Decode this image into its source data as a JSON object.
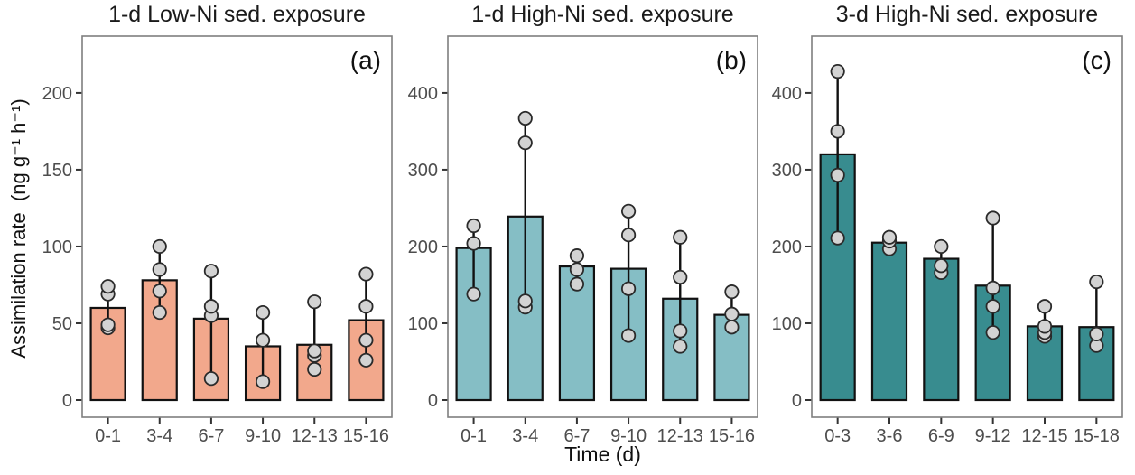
{
  "axes": {
    "ylabel": "Assimilation rate  (ng g⁻¹ h⁻¹)",
    "xlabel": "Time (d)"
  },
  "colors": {
    "background": "#ffffff",
    "panel_border": "#7f7f7f",
    "bar_stroke": "#111111",
    "point_fill": "#d3d3d3",
    "point_stroke": "#2a2a2a",
    "tick_mark": "#333333",
    "tick_label": "#4d4d4d",
    "text": "#1a1a1a",
    "bar_salmon": "#F2A88C",
    "bar_light_teal": "#85BEC5",
    "bar_dark_teal": "#388C8F"
  },
  "chart_data": [
    {
      "type": "bar",
      "title": "1-d Low-Ni sed. exposure",
      "panel_label": "(a)",
      "bar_color": "#F2A88C",
      "categories": [
        "0-1",
        "3-4",
        "6-7",
        "9-10",
        "12-13",
        "15-16"
      ],
      "bar_values": [
        60,
        78,
        53,
        35,
        36,
        52
      ],
      "points": [
        [
          47,
          49,
          69,
          74
        ],
        [
          57,
          71,
          85,
          100
        ],
        [
          14,
          55,
          61,
          84
        ],
        [
          12,
          39,
          57
        ],
        [
          20,
          29,
          32,
          64
        ],
        [
          26,
          39,
          61,
          82
        ]
      ],
      "error_low": [
        47,
        57,
        14,
        12,
        20,
        26
      ],
      "error_high": [
        74,
        100,
        84,
        57,
        64,
        82
      ],
      "yticks": [
        0,
        50,
        100,
        150,
        200
      ],
      "ylim": [
        0,
        237
      ],
      "grid": false,
      "legend": false
    },
    {
      "type": "bar",
      "title": "1-d High-Ni sed. exposure",
      "panel_label": "(b)",
      "bar_color": "#85BEC5",
      "categories": [
        "0-1",
        "3-4",
        "6-7",
        "9-10",
        "12-13",
        "15-16"
      ],
      "bar_values": [
        198,
        239,
        174,
        171,
        132,
        111
      ],
      "points": [
        [
          138,
          204,
          227
        ],
        [
          121,
          129,
          335,
          367
        ],
        [
          151,
          170,
          188
        ],
        [
          84,
          145,
          215,
          246
        ],
        [
          70,
          90,
          160,
          212
        ],
        [
          95,
          112,
          141
        ]
      ],
      "error_low": [
        138,
        121,
        151,
        84,
        70,
        95
      ],
      "error_high": [
        227,
        367,
        188,
        246,
        212,
        141
      ],
      "yticks": [
        0,
        100,
        200,
        300,
        400
      ],
      "ylim": [
        0,
        474
      ],
      "grid": false,
      "legend": false
    },
    {
      "type": "bar",
      "title": "3-d High-Ni sed. exposure",
      "panel_label": "(c)",
      "bar_color": "#388C8F",
      "categories": [
        "0-3",
        "3-6",
        "6-9",
        "9-12",
        "12-15",
        "15-18"
      ],
      "bar_values": [
        320,
        205,
        184,
        149,
        96,
        95
      ],
      "points": [
        [
          211,
          293,
          350,
          428
        ],
        [
          197,
          207,
          212
        ],
        [
          166,
          175,
          200
        ],
        [
          88,
          122,
          146,
          237
        ],
        [
          83,
          88,
          96,
          122
        ],
        [
          71,
          86,
          154
        ]
      ],
      "error_low": [
        211,
        197,
        166,
        88,
        83,
        71
      ],
      "error_high": [
        428,
        212,
        200,
        237,
        122,
        154
      ],
      "yticks": [
        0,
        100,
        200,
        300,
        400
      ],
      "ylim": [
        0,
        474
      ],
      "grid": false,
      "legend": false
    }
  ]
}
